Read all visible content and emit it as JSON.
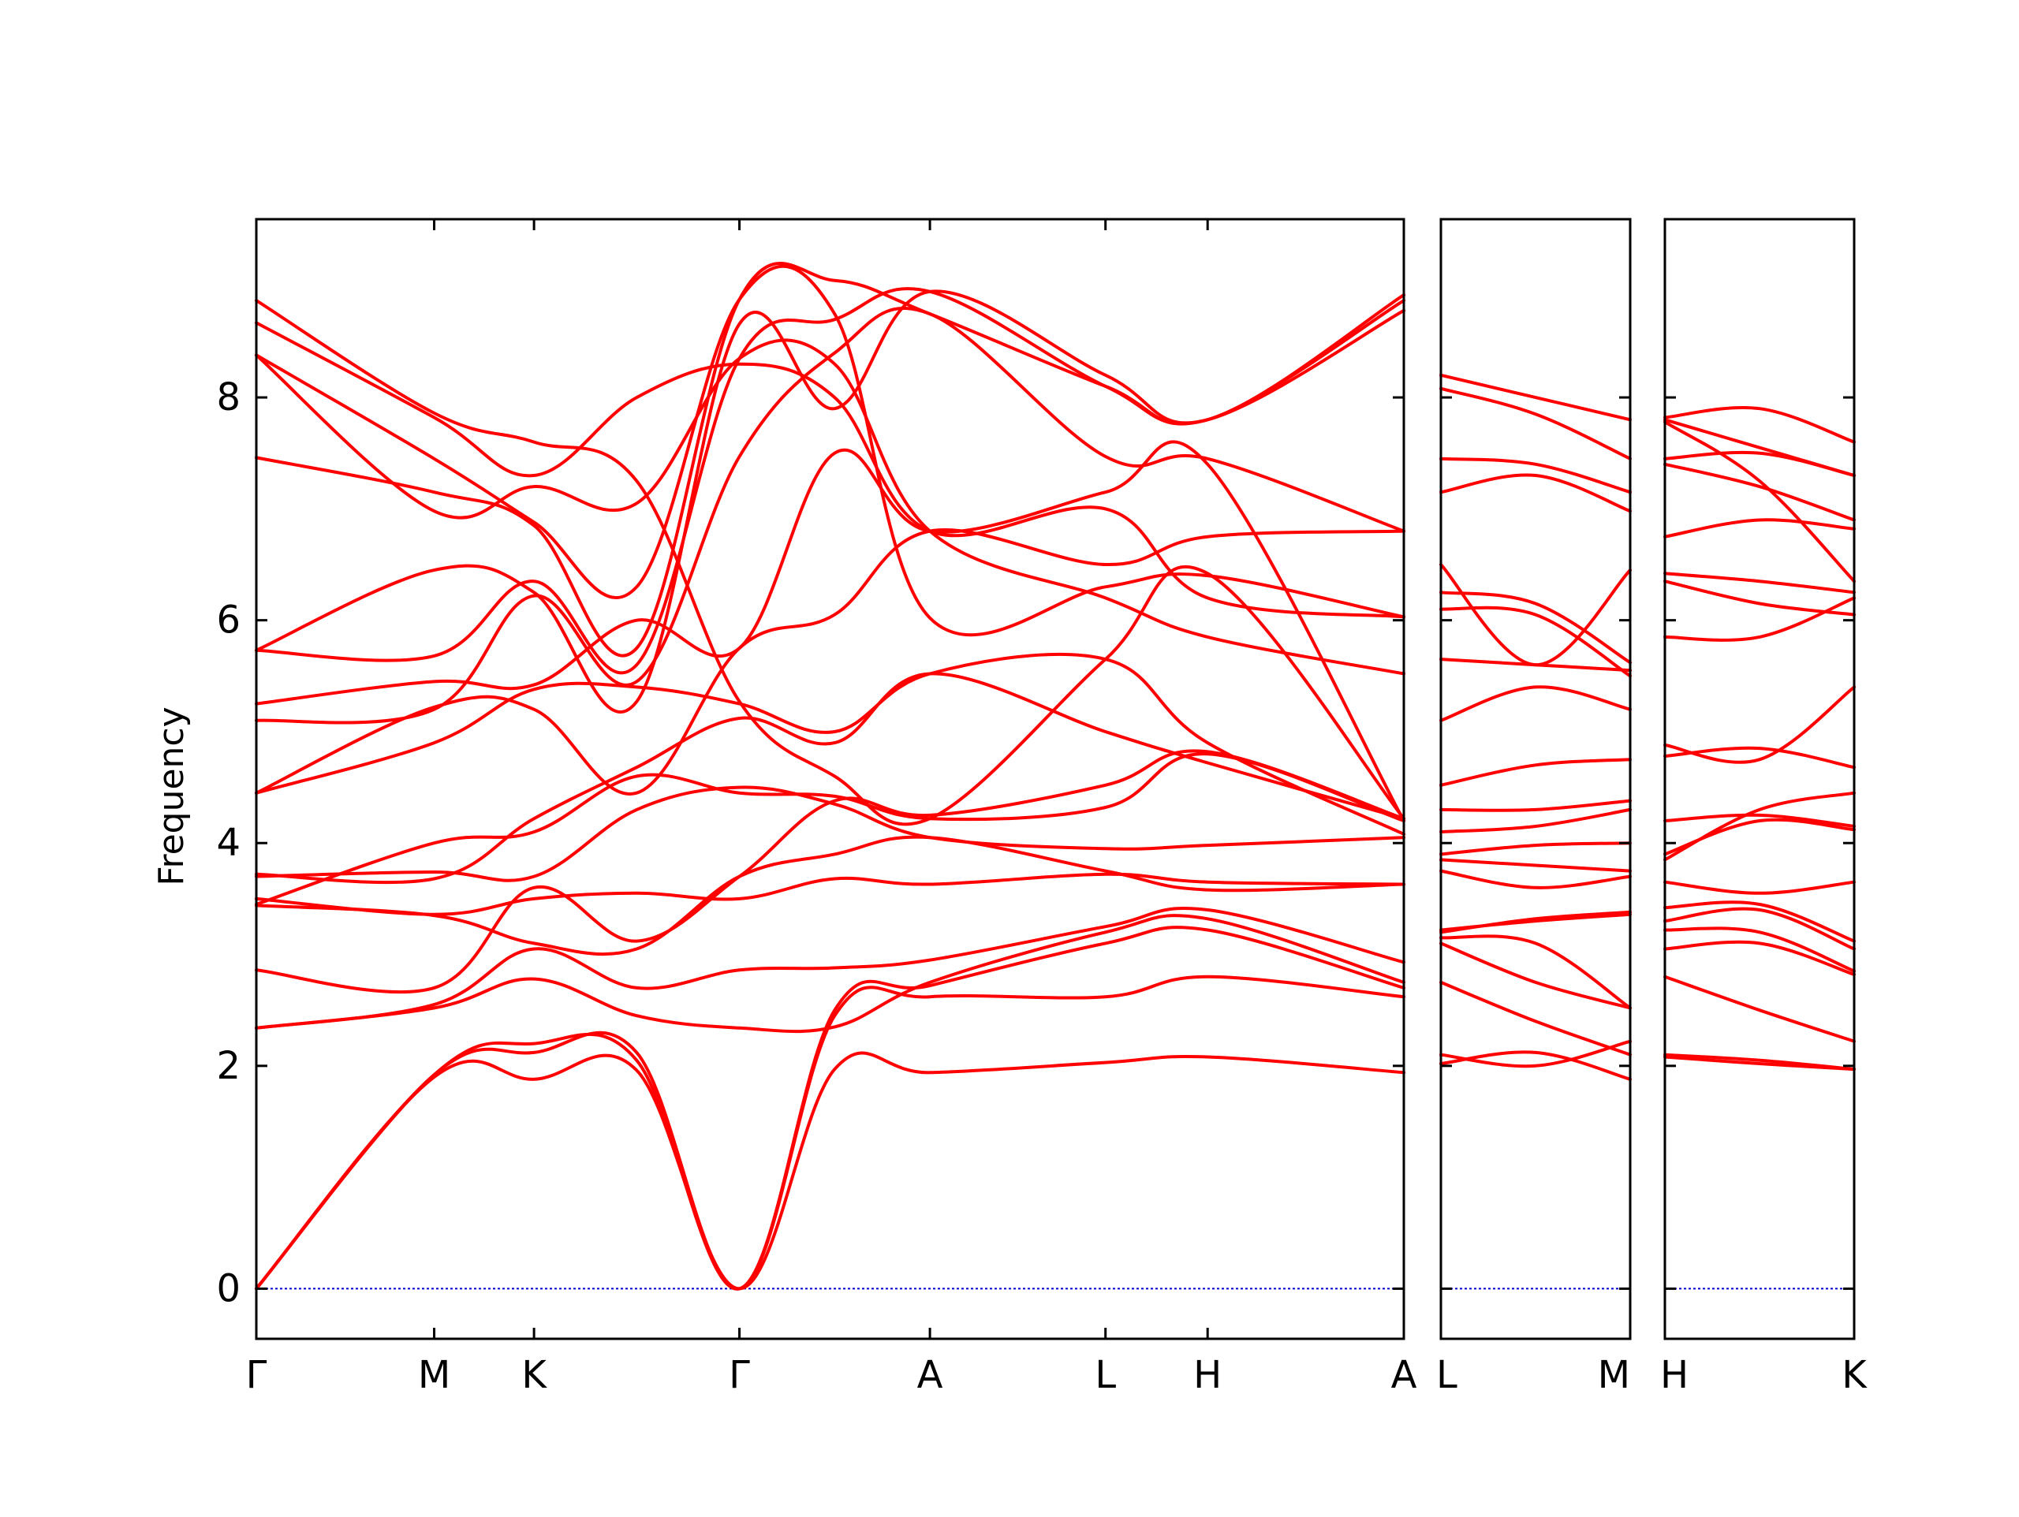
{
  "chart_data": {
    "type": "line",
    "title": "",
    "ylabel": "Frequency",
    "ylim": [
      -0.45,
      9.6
    ],
    "yticks": [
      0,
      2,
      4,
      6,
      8
    ],
    "line_color": "#ff0000",
    "zero_line_color": "#0000cc",
    "segments": [
      {
        "labels": [
          "Γ",
          "M",
          "K",
          "Γ",
          "A",
          "L",
          "H",
          "A"
        ],
        "label_x": [
          0,
          0.155,
          0.242,
          0.421,
          0.587,
          0.74,
          0.829,
          1.0
        ]
      },
      {
        "labels": [
          "L",
          "M"
        ],
        "label_x": [
          0,
          1.0
        ]
      },
      {
        "labels": [
          "H",
          "K"
        ],
        "label_x": [
          0,
          1.0
        ]
      }
    ],
    "panels": [
      {
        "bands": [
          [
            0,
            1.92,
            2.12,
            2.12,
            0,
            2.45,
            2.62,
            2.62,
            2.8,
            2.62
          ],
          [
            0,
            1.9,
            1.88,
            1.96,
            0,
            1.97,
            1.94,
            2.03,
            2.08,
            1.94
          ],
          [
            0,
            1.92,
            2.2,
            2.05,
            0,
            2.5,
            2.72,
            3.1,
            3.22,
            2.7
          ],
          [
            2.34,
            2.52,
            2.78,
            2.45,
            2.34,
            2.35,
            2.75,
            3.2,
            3.32,
            2.75
          ],
          [
            2.34,
            2.55,
            3.05,
            2.7,
            2.86,
            2.88,
            2.95,
            3.25,
            3.4,
            2.93
          ],
          [
            2.86,
            2.7,
            3.6,
            3.12,
            3.7,
            4.38,
            4.25,
            4.52,
            4.82,
            4.22
          ],
          [
            3.44,
            3.35,
            3.1,
            3.05,
            3.7,
            3.9,
            4.05,
            3.75,
            3.58,
            3.63
          ],
          [
            3.5,
            3.36,
            3.5,
            3.55,
            3.5,
            3.68,
            3.63,
            3.72,
            3.65,
            3.63
          ],
          [
            3.7,
            3.74,
            3.7,
            4.3,
            4.5,
            4.35,
            4.05,
            3.95,
            3.98,
            4.05
          ],
          [
            3.45,
            4.0,
            4.1,
            4.6,
            4.45,
            4.42,
            4.22,
            4.32,
            4.8,
            4.2
          ],
          [
            3.72,
            3.68,
            4.22,
            4.68,
            5.12,
            4.9,
            5.52,
            5.0,
            4.72,
            4.22
          ],
          [
            4.45,
            4.9,
            5.38,
            5.4,
            5.25,
            5.0,
            5.52,
            5.65,
            4.9,
            4.08
          ],
          [
            4.45,
            5.22,
            5.2,
            4.45,
            5.75,
            6.05,
            6.8,
            6.5,
            6.75,
            6.8
          ],
          [
            5.25,
            5.45,
            5.42,
            6.0,
            5.75,
            7.5,
            6.8,
            7.15,
            7.4,
            4.2
          ],
          [
            5.1,
            5.2,
            6.22,
            5.45,
            7.47,
            8.4,
            8.75,
            7.47,
            7.45,
            6.8
          ],
          [
            5.73,
            5.68,
            6.35,
            5.6,
            8.35,
            8.7,
            8.95,
            8.1,
            7.8,
            8.78
          ],
          [
            5.73,
            6.45,
            6.25,
            5.27,
            8.66,
            7.9,
            8.95,
            8.2,
            7.8,
            8.92
          ],
          [
            7.46,
            7.15,
            6.85,
            5.75,
            8.88,
            9.05,
            8.75,
            8.1,
            7.8,
            8.87
          ],
          [
            8.38,
            7.45,
            6.88,
            6.3,
            8.88,
            8.75,
            6.02,
            6.3,
            6.4,
            6.03
          ],
          [
            8.38,
            6.98,
            7.2,
            7.05,
            8.35,
            8.3,
            6.8,
            6.2,
            5.85,
            5.52
          ],
          [
            8.67,
            7.82,
            7.3,
            8.0,
            8.3,
            8.0,
            6.8,
            7.0,
            6.2,
            6.03
          ],
          [
            8.87,
            7.86,
            7.6,
            7.25,
            5.27,
            4.6,
            4.22,
            5.65,
            6.42,
            4.22
          ]
        ]
      },
      {
        "bands": [
          [
            2.1,
            2.0,
            2.22
          ],
          [
            2.02,
            2.12,
            1.88
          ],
          [
            2.75,
            2.4,
            2.1
          ],
          [
            3.1,
            2.75,
            2.52
          ],
          [
            3.15,
            3.1,
            2.52
          ],
          [
            3.22,
            3.3,
            3.36
          ],
          [
            3.2,
            3.32,
            3.38
          ],
          [
            3.75,
            3.6,
            3.7
          ],
          [
            3.85,
            3.8,
            3.75
          ],
          [
            3.9,
            3.98,
            4.0
          ],
          [
            4.1,
            4.15,
            4.3
          ],
          [
            4.3,
            4.3,
            4.38
          ],
          [
            4.52,
            4.7,
            4.75
          ],
          [
            5.1,
            5.4,
            5.2
          ],
          [
            5.65,
            5.6,
            5.55
          ],
          [
            6.1,
            6.05,
            5.5
          ],
          [
            6.25,
            6.15,
            5.62
          ],
          [
            6.5,
            5.6,
            6.45
          ],
          [
            7.15,
            7.3,
            6.98
          ],
          [
            7.45,
            7.4,
            7.15
          ],
          [
            8.08,
            7.85,
            7.45
          ],
          [
            8.2,
            8.0,
            7.8
          ]
        ]
      },
      {
        "bands": [
          [
            2.1,
            2.05,
            1.97
          ],
          [
            2.08,
            2.02,
            1.97
          ],
          [
            2.8,
            2.5,
            2.22
          ],
          [
            3.05,
            3.1,
            2.82
          ],
          [
            3.22,
            3.2,
            2.85
          ],
          [
            3.3,
            3.4,
            3.05
          ],
          [
            3.42,
            3.45,
            3.12
          ],
          [
            3.65,
            3.55,
            3.65
          ],
          [
            3.9,
            4.2,
            4.12
          ],
          [
            4.2,
            4.25,
            4.15
          ],
          [
            3.85,
            4.3,
            4.45
          ],
          [
            4.78,
            4.85,
            4.68
          ],
          [
            4.88,
            4.75,
            5.4
          ],
          [
            5.85,
            5.85,
            6.2
          ],
          [
            6.35,
            6.15,
            6.05
          ],
          [
            6.42,
            6.35,
            6.25
          ],
          [
            6.75,
            6.9,
            6.82
          ],
          [
            7.4,
            7.2,
            6.9
          ],
          [
            7.45,
            7.5,
            7.3
          ],
          [
            7.8,
            7.55,
            7.3
          ],
          [
            7.82,
            7.9,
            7.6
          ],
          [
            7.78,
            7.25,
            6.35
          ]
        ]
      }
    ]
  }
}
